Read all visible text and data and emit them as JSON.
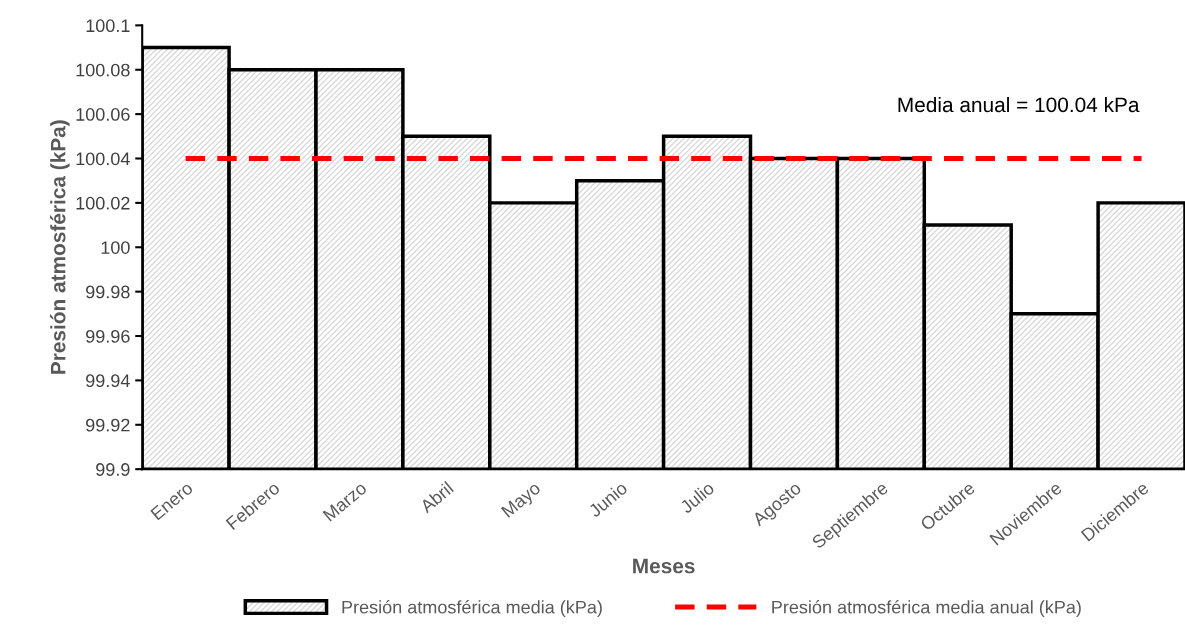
{
  "chart_data": {
    "type": "bar",
    "xlabel": "Meses",
    "ylabel": "Presión atmosférica (kPa)",
    "categories": [
      "Enero",
      "Febrero",
      "Marzo",
      "Abril",
      "Mayo",
      "Junio",
      "Julio",
      "Agosto",
      "Septiembre",
      "Octubre",
      "Noviembre",
      "Diciembre"
    ],
    "series": [
      {
        "name": "Presión atmosférica media (kPa)",
        "color": "#000000",
        "values": [
          100.09,
          100.08,
          100.08,
          100.05,
          100.02,
          100.03,
          100.05,
          100.04,
          100.04,
          100.01,
          99.97,
          100.02
        ]
      },
      {
        "name": "Presión atmosférica media anual (kPa)",
        "type": "line",
        "line_style": "dashed",
        "color": "#ff0000",
        "values": [
          100.04,
          100.04,
          100.04,
          100.04,
          100.04,
          100.04,
          100.04,
          100.04,
          100.04,
          100.04,
          100.04,
          100.04
        ]
      }
    ],
    "annotations": [
      "Media anual = 100.04 kPa"
    ],
    "ylim": [
      99.9,
      100.1
    ],
    "yticks": [
      99.9,
      99.92,
      99.94,
      99.96,
      99.98,
      {
        "value": 100,
        "label": "100"
      },
      100.02,
      100.04,
      100.06,
      100.08,
      {
        "value": 100.1,
        "label": "100.1"
      }
    ],
    "grid": false,
    "legend": "bottom",
    "marker": "none"
  }
}
